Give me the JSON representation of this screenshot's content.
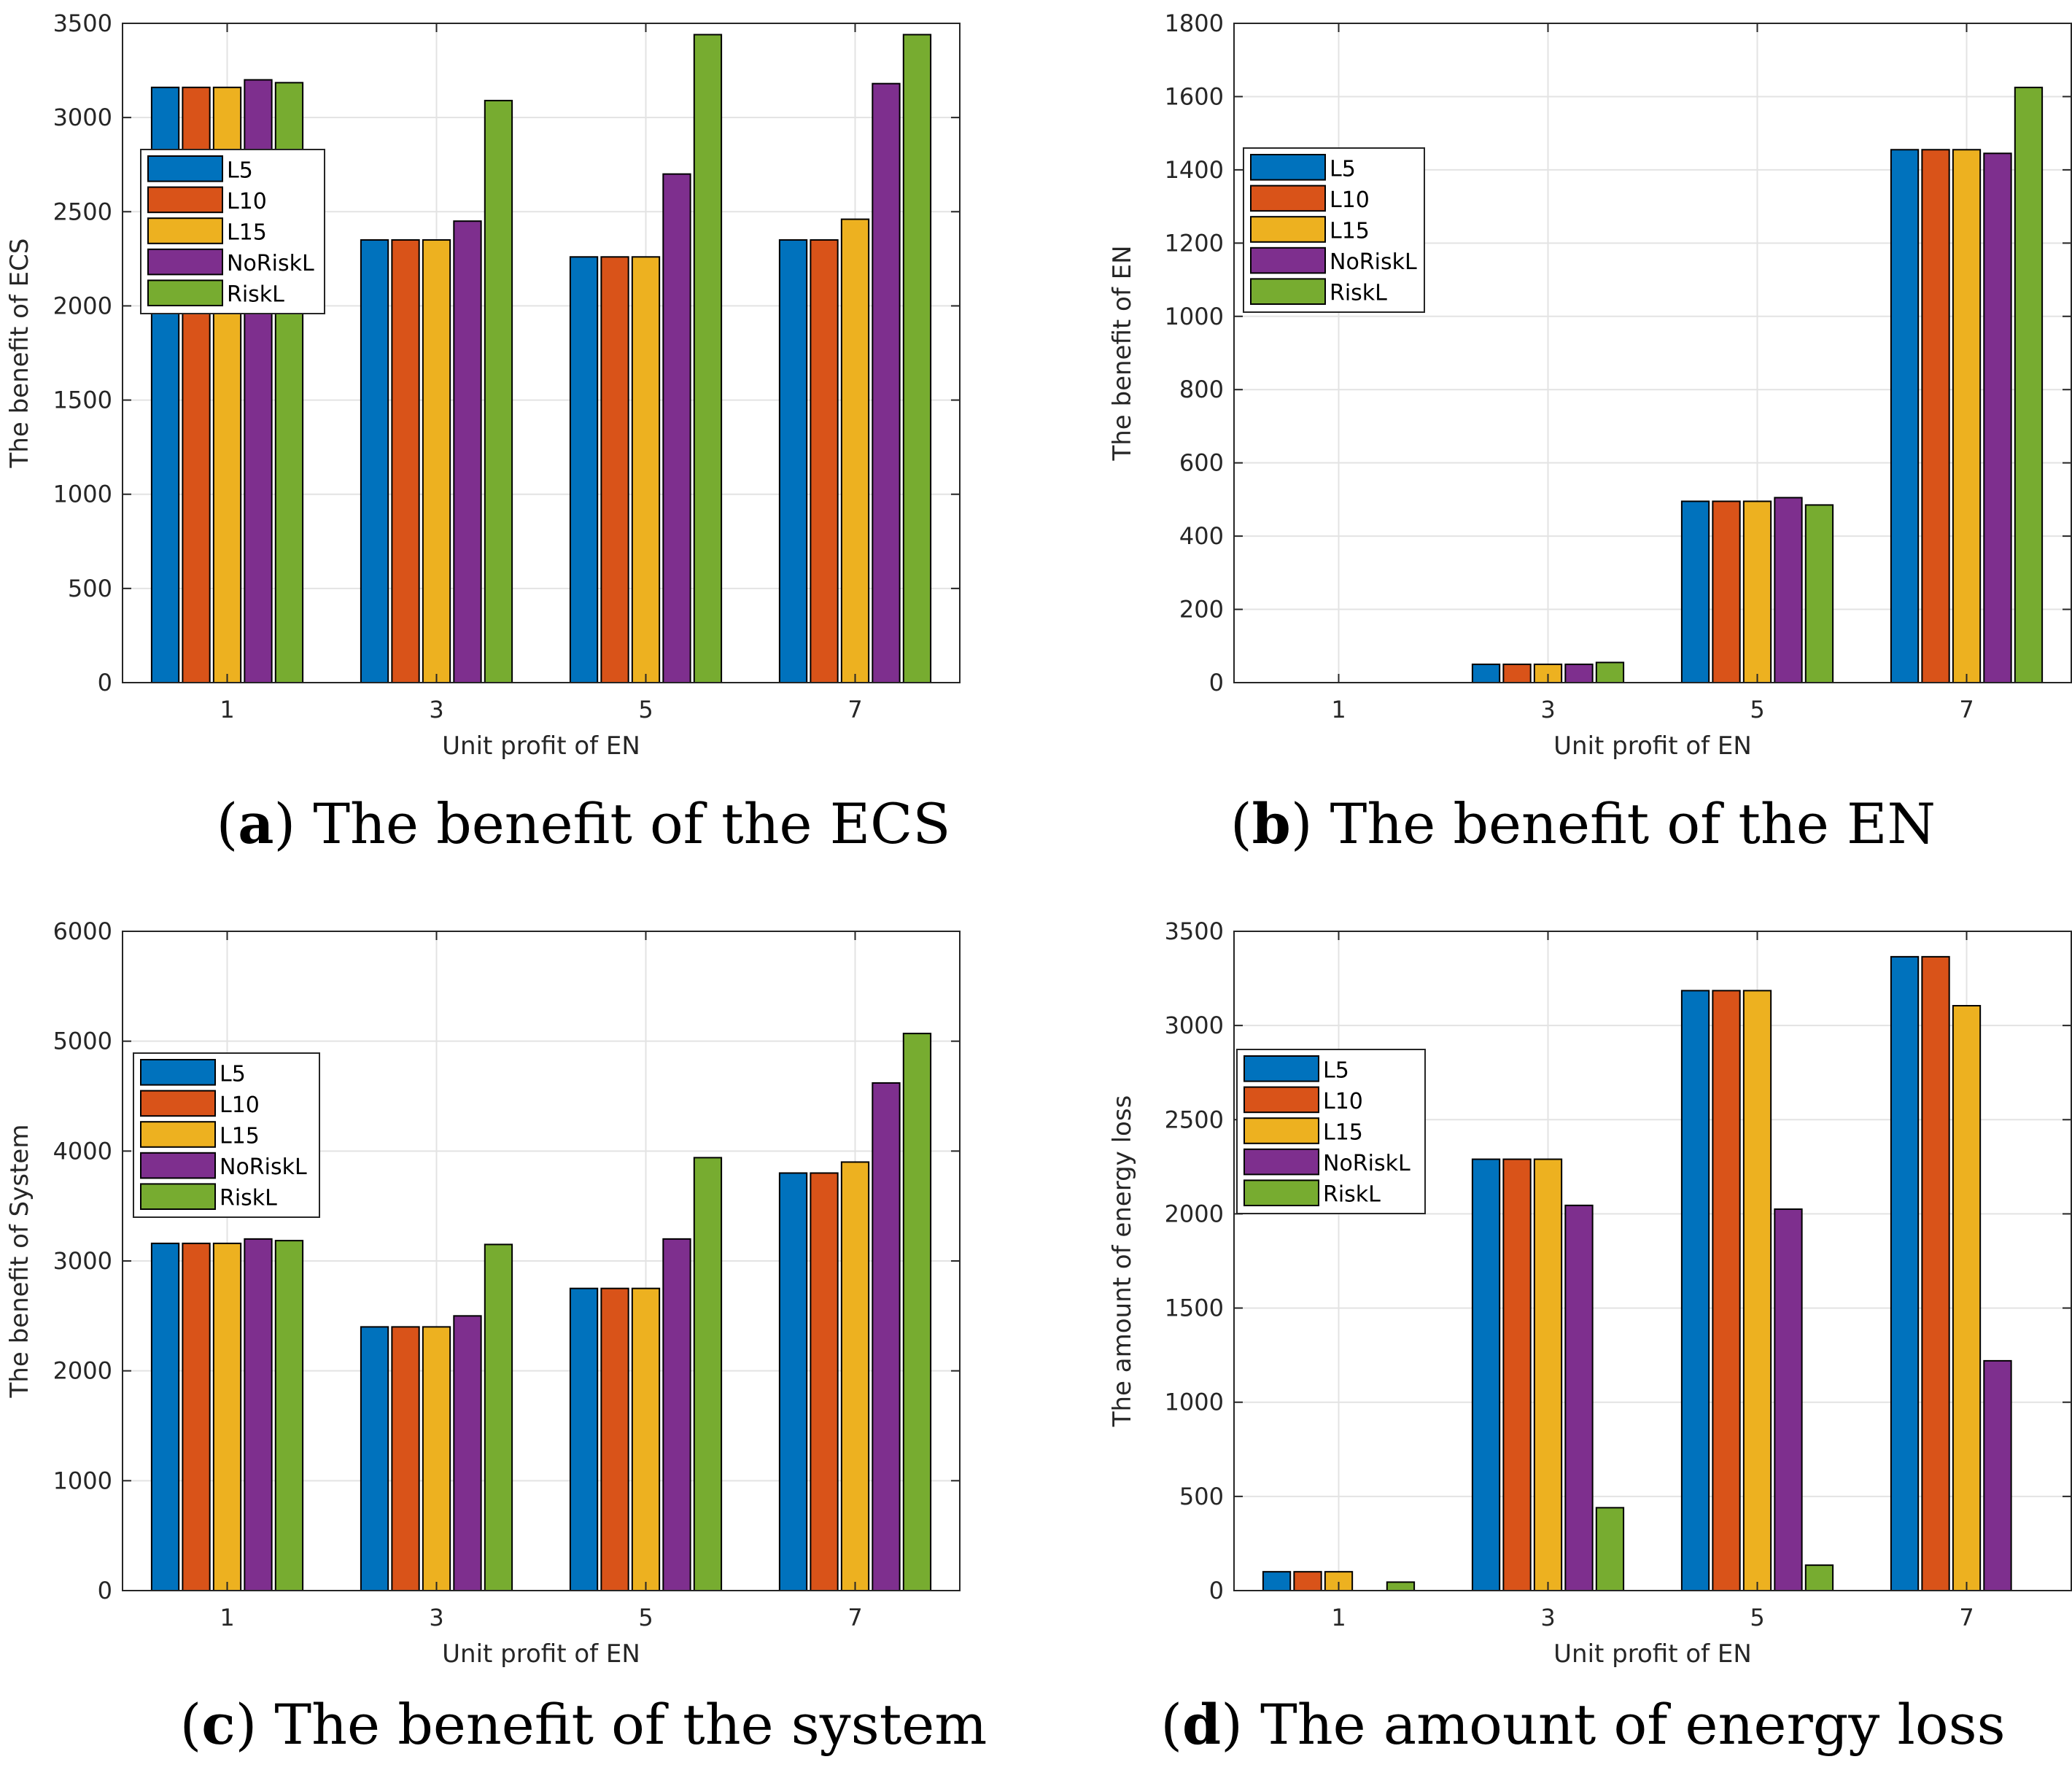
{
  "chart_data": [
    {
      "id": "a",
      "type": "bar",
      "caption_letter": "a",
      "caption_text": "The benefit of the ECS",
      "xlabel": "Unit profit of EN",
      "ylabel": "The benefit of ECS",
      "categories": [
        "1",
        "3",
        "5",
        "7"
      ],
      "ylim": [
        0,
        3500
      ],
      "yticks": [
        0,
        500,
        1000,
        1500,
        2000,
        2500,
        3000,
        3500
      ],
      "grid": true,
      "legend": "upper-left",
      "series": [
        {
          "name": "L5",
          "values": [
            3160,
            2350,
            2260,
            2350
          ]
        },
        {
          "name": "L10",
          "values": [
            3160,
            2350,
            2260,
            2350
          ]
        },
        {
          "name": "L15",
          "values": [
            3160,
            2350,
            2260,
            2460
          ]
        },
        {
          "name": "NoRiskL",
          "values": [
            3200,
            2450,
            2700,
            3180
          ]
        },
        {
          "name": "RiskL",
          "values": [
            3185,
            3090,
            3440,
            3440
          ]
        }
      ]
    },
    {
      "id": "b",
      "type": "bar",
      "caption_letter": "b",
      "caption_text": "The benefit of the EN",
      "xlabel": "Unit profit of EN",
      "ylabel": "The benefit of EN",
      "categories": [
        "1",
        "3",
        "5",
        "7"
      ],
      "ylim": [
        0,
        1800
      ],
      "yticks": [
        0,
        200,
        400,
        600,
        800,
        1000,
        1200,
        1400,
        1600,
        1800
      ],
      "grid": true,
      "legend": "upper-left",
      "series": [
        {
          "name": "L5",
          "values": [
            0,
            50,
            495,
            1455
          ]
        },
        {
          "name": "L10",
          "values": [
            0,
            50,
            495,
            1455
          ]
        },
        {
          "name": "L15",
          "values": [
            0,
            50,
            495,
            1455
          ]
        },
        {
          "name": "NoRiskL",
          "values": [
            0,
            50,
            505,
            1445
          ]
        },
        {
          "name": "RiskL",
          "values": [
            0,
            55,
            485,
            1625
          ]
        }
      ]
    },
    {
      "id": "c",
      "type": "bar",
      "caption_letter": "c",
      "caption_text": "The benefit of the system",
      "xlabel": "Unit profit of EN",
      "ylabel": "The benefit of System",
      "categories": [
        "1",
        "3",
        "5",
        "7"
      ],
      "ylim": [
        0,
        6000
      ],
      "yticks": [
        0,
        1000,
        2000,
        3000,
        4000,
        5000,
        6000
      ],
      "grid": true,
      "legend": "upper-left",
      "series": [
        {
          "name": "L5",
          "values": [
            3160,
            2400,
            2750,
            3800
          ]
        },
        {
          "name": "L10",
          "values": [
            3160,
            2400,
            2750,
            3800
          ]
        },
        {
          "name": "L15",
          "values": [
            3160,
            2400,
            2750,
            3900
          ]
        },
        {
          "name": "NoRiskL",
          "values": [
            3200,
            2500,
            3200,
            4620
          ]
        },
        {
          "name": "RiskL",
          "values": [
            3185,
            3150,
            3940,
            5070
          ]
        }
      ]
    },
    {
      "id": "d",
      "type": "bar",
      "caption_letter": "d",
      "caption_text": "The amount of energy loss",
      "xlabel": "Unit profit of EN",
      "ylabel": "The amount of energy loss",
      "categories": [
        "1",
        "3",
        "5",
        "7"
      ],
      "ylim": [
        0,
        3500
      ],
      "yticks": [
        0,
        500,
        1000,
        1500,
        2000,
        2500,
        3000,
        3500
      ],
      "grid": true,
      "legend": "upper-left",
      "series": [
        {
          "name": "L5",
          "values": [
            100,
            2290,
            3185,
            3365
          ]
        },
        {
          "name": "L10",
          "values": [
            100,
            2290,
            3185,
            3365
          ]
        },
        {
          "name": "L15",
          "values": [
            100,
            2290,
            3185,
            3105
          ]
        },
        {
          "name": "NoRiskL",
          "values": [
            0,
            2045,
            2025,
            1220
          ]
        },
        {
          "name": "RiskL",
          "values": [
            45,
            440,
            135,
            0
          ]
        }
      ]
    }
  ],
  "colors": {
    "series": [
      "#0072BD",
      "#D95319",
      "#EDB120",
      "#7E2F8E",
      "#77AC30"
    ],
    "grid": "#e3e3e3",
    "axis": "#262626"
  }
}
